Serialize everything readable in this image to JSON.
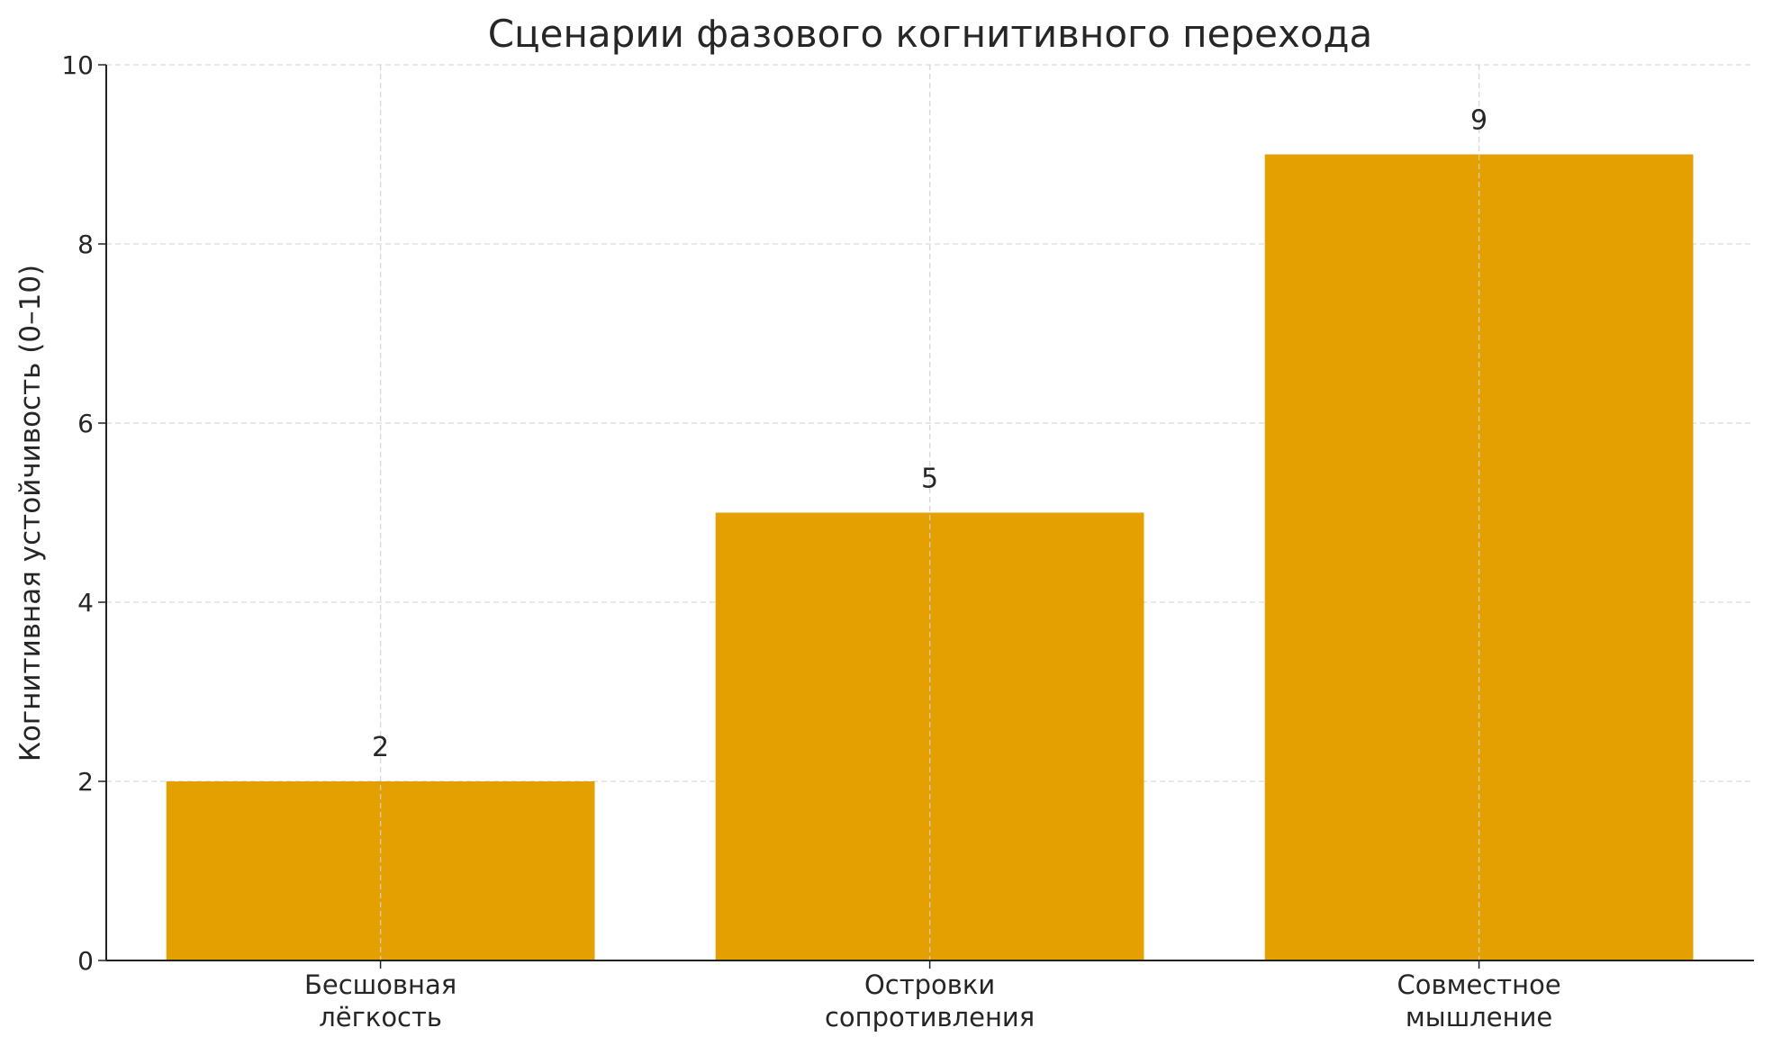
{
  "chart_data": {
    "type": "bar",
    "title": "Сценарии фазового когнитивного перехода",
    "xlabel": "",
    "ylabel": "Когнитивная устойчивость (0–10)",
    "categories": [
      [
        "Бесшовная",
        "лёгкость"
      ],
      [
        "Островки",
        "сопротивления"
      ],
      [
        "Совместное",
        "мышление"
      ]
    ],
    "values": [
      2,
      5,
      9
    ],
    "data_labels": [
      "2",
      "5",
      "9"
    ],
    "ylim": [
      0,
      10
    ],
    "yticks": [
      0,
      2,
      4,
      6,
      8,
      10
    ],
    "grid": true,
    "bar_color": "#E3A000"
  }
}
